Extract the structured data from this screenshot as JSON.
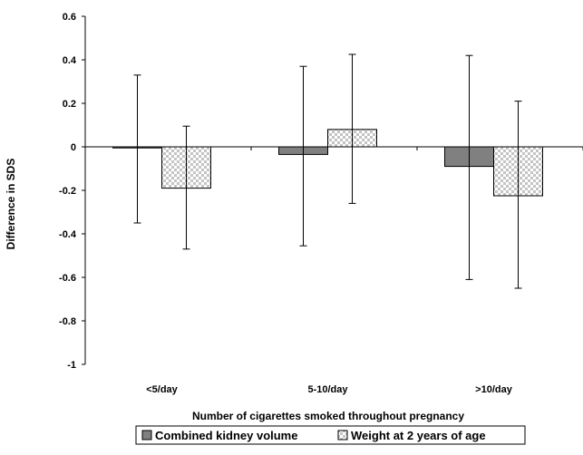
{
  "chart_data": {
    "type": "bar",
    "title": "",
    "xlabel": "Number of cigarettes smoked throughout pregnancy",
    "ylabel": "Difference in SDS",
    "ylim": [
      -1,
      0.6
    ],
    "yticks": [
      0.6,
      0.4,
      0.2,
      0,
      -0.2,
      -0.4,
      -0.6,
      -0.8,
      -1
    ],
    "ytick_labels": [
      "0.6",
      "0.4",
      "0.2",
      "0",
      "-0.2",
      "-0.4",
      "-0.6",
      "-0.8",
      "-1"
    ],
    "categories": [
      "<5/day",
      "5-10/day",
      ">10/day"
    ],
    "series": [
      {
        "name": "Combined kidney volume",
        "values": [
          -0.005,
          -0.035,
          -0.09
        ],
        "error_low": [
          -0.35,
          -0.455,
          -0.61
        ],
        "error_high": [
          0.33,
          0.37,
          0.42
        ],
        "color": "#808080",
        "pattern": "solid"
      },
      {
        "name": "Weight at 2 years of age",
        "values": [
          -0.19,
          0.08,
          -0.225
        ],
        "error_low": [
          -0.47,
          -0.26,
          -0.65
        ],
        "error_high": [
          0.095,
          0.425,
          0.21
        ],
        "color": "#c8c8c8",
        "pattern": "checkered"
      }
    ],
    "grid": false,
    "legend_position": "bottom"
  }
}
